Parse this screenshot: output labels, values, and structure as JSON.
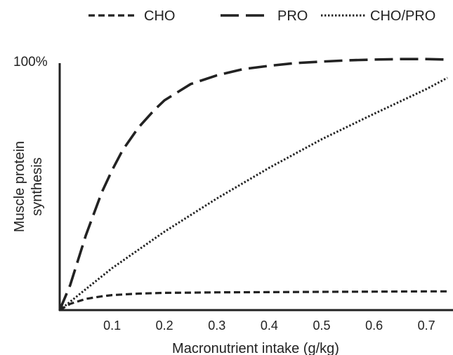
{
  "chart_data": {
    "type": "line",
    "xlabel": "Macronutrient intake (g/kg)",
    "ylabel_lines": [
      "Muscle protein",
      "synthesis"
    ],
    "ytick_label": "100%",
    "ytick_value": 1.0,
    "xticks": [
      0.1,
      0.2,
      0.3,
      0.4,
      0.5,
      0.6,
      0.7
    ],
    "xtick_labels": [
      "0.1",
      "0.2",
      "0.3",
      "0.4",
      "0.5",
      "0.6",
      "0.7"
    ],
    "xlim": [
      0,
      0.74
    ],
    "ylim": [
      0,
      1.0
    ],
    "grid": false,
    "legend_position": "top",
    "series": [
      {
        "name": "CHO",
        "style": "short-dash",
        "x": [
          0,
          0.02,
          0.05,
          0.08,
          0.1,
          0.15,
          0.2,
          0.25,
          0.3,
          0.4,
          0.5,
          0.6,
          0.7,
          0.74
        ],
        "y": [
          0,
          0.025,
          0.045,
          0.055,
          0.06,
          0.066,
          0.069,
          0.07,
          0.071,
          0.072,
          0.073,
          0.074,
          0.075,
          0.075
        ]
      },
      {
        "name": "PRO",
        "style": "long-dash",
        "x": [
          0,
          0.02,
          0.05,
          0.08,
          0.1,
          0.12,
          0.15,
          0.18,
          0.2,
          0.25,
          0.3,
          0.35,
          0.4,
          0.45,
          0.5,
          0.55,
          0.6,
          0.65,
          0.7,
          0.74
        ],
        "y": [
          0,
          0.1,
          0.3,
          0.47,
          0.56,
          0.64,
          0.73,
          0.8,
          0.84,
          0.905,
          0.94,
          0.965,
          0.978,
          0.989,
          0.995,
          1.0,
          1.003,
          1.005,
          1.005,
          1.003
        ]
      },
      {
        "name": "CHO/PRO",
        "style": "dotted",
        "x": [
          0,
          0.1,
          0.2,
          0.3,
          0.4,
          0.5,
          0.6,
          0.7,
          0.74
        ],
        "y": [
          0,
          0.168,
          0.314,
          0.447,
          0.57,
          0.684,
          0.786,
          0.885,
          0.93
        ]
      }
    ]
  }
}
